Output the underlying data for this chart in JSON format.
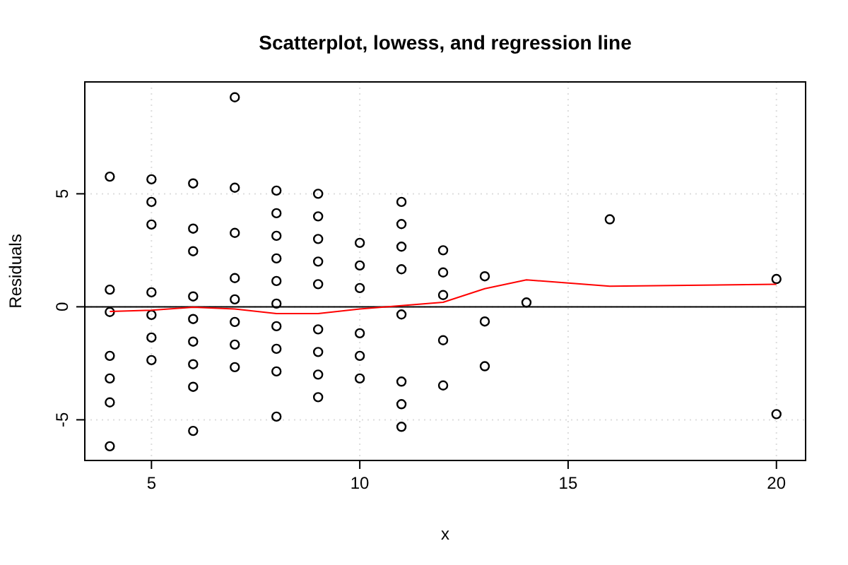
{
  "chart_data": {
    "type": "scatter",
    "title": "Scatterplot, lowess, and regression line",
    "xlabel": "x",
    "ylabel": "Residuals",
    "xlim": [
      3.4,
      20.7
    ],
    "ylim": [
      -6.8,
      9.95
    ],
    "xticks": [
      5,
      10,
      15,
      20
    ],
    "yticks": [
      -5,
      0,
      5
    ],
    "grid": true,
    "marker": "circle",
    "series": [
      {
        "color": "#000000",
        "x": [
          4,
          4,
          4,
          4,
          4,
          4,
          4,
          5,
          5,
          5,
          5,
          5,
          5,
          5,
          6,
          6,
          6,
          6,
          6,
          6,
          6,
          6,
          6,
          7,
          7,
          7,
          7,
          7,
          7,
          7,
          7,
          8,
          8,
          8,
          8,
          8,
          8,
          8,
          8,
          8,
          8,
          9,
          9,
          9,
          9,
          9,
          9,
          9,
          9,
          9,
          10,
          10,
          10,
          10,
          10,
          10,
          11,
          11,
          11,
          11,
          11,
          11,
          11,
          11,
          12,
          12,
          12,
          12,
          12,
          13,
          13,
          13,
          14,
          16,
          20,
          20
        ],
        "values": [
          5.76,
          0.76,
          -0.23,
          -2.17,
          -3.17,
          -4.23,
          -6.17,
          5.64,
          4.64,
          3.64,
          0.64,
          -0.36,
          -1.36,
          -2.36,
          5.46,
          3.46,
          2.46,
          0.46,
          -0.54,
          -1.54,
          -2.54,
          -3.54,
          -5.49,
          9.27,
          5.27,
          3.27,
          1.27,
          0.33,
          -0.67,
          -1.67,
          -2.67,
          5.14,
          4.14,
          3.14,
          2.14,
          1.14,
          0.14,
          -0.86,
          -1.86,
          -2.86,
          -4.86,
          5.0,
          4.0,
          3.0,
          2.0,
          1.0,
          -1.0,
          -2.0,
          -3.0,
          -4.0,
          2.83,
          1.83,
          0.83,
          -1.17,
          -2.17,
          -3.17,
          4.64,
          3.66,
          2.66,
          1.66,
          -0.34,
          -3.31,
          -4.31,
          -5.31,
          2.5,
          1.52,
          0.52,
          -1.48,
          -3.48,
          1.35,
          -0.65,
          -2.63,
          0.19,
          3.87,
          1.23,
          -4.75
        ]
      },
      {
        "type": "line",
        "color": "#ff0000",
        "marker": "none",
        "x": [
          4,
          5,
          6,
          7,
          8,
          9,
          10,
          11,
          12,
          13,
          14,
          16,
          20
        ],
        "values": [
          -0.21,
          -0.15,
          -0.02,
          -0.1,
          -0.3,
          -0.3,
          -0.1,
          0.05,
          0.2,
          0.8,
          1.19,
          0.91,
          1.0
        ]
      }
    ],
    "ref_lines": [
      {
        "axis": "y",
        "value": 0,
        "color": "#000000"
      }
    ]
  }
}
